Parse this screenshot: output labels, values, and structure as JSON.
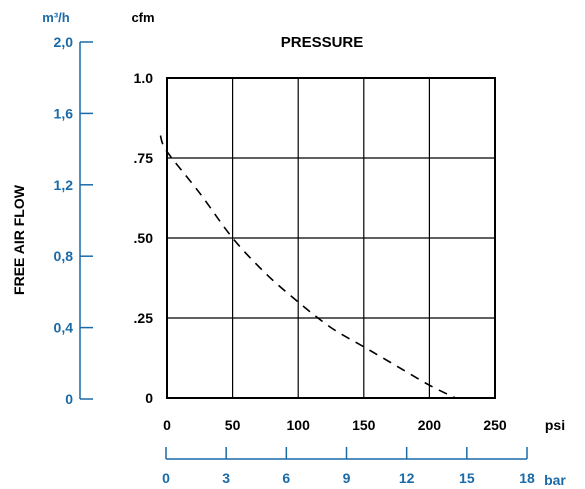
{
  "colors": {
    "blue": "#1a6aa8",
    "black": "#000000"
  },
  "chart_data": {
    "type": "line",
    "title": "PRESSURE",
    "ylabel": "FREE AIR FLOW",
    "x_axis_primary": {
      "unit": "psi",
      "ticks": [
        "0",
        "50",
        "100",
        "150",
        "200",
        "250"
      ],
      "range": [
        0,
        250
      ]
    },
    "x_axis_secondary": {
      "unit": "bar",
      "ticks": [
        "0",
        "3",
        "6",
        "9",
        "12",
        "15",
        "18"
      ]
    },
    "y_axis_primary": {
      "unit": "cfm",
      "ticks": [
        "0",
        ".25",
        ".50",
        ".75",
        "1.0"
      ],
      "range": [
        0,
        1.0
      ]
    },
    "y_axis_secondary": {
      "unit": "m³/h",
      "ticks": [
        "0",
        "0,4",
        "0,8",
        "1,2",
        "1,6",
        "2,0"
      ]
    },
    "grid": true,
    "series": [
      {
        "style": "dashed",
        "x": [
          -5,
          0,
          25,
          50,
          75,
          100,
          125,
          150,
          175,
          200,
          220
        ],
        "y": [
          0.82,
          0.77,
          0.64,
          0.5,
          0.39,
          0.3,
          0.22,
          0.16,
          0.1,
          0.04,
          0.0
        ]
      }
    ]
  }
}
